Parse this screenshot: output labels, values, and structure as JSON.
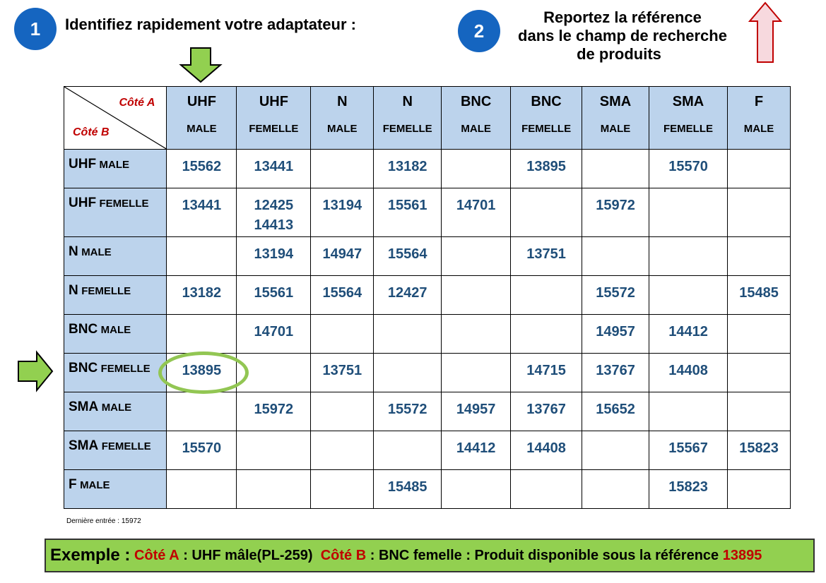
{
  "steps": [
    {
      "number": "1",
      "text": "Identifiez rapidement votre adaptateur :"
    },
    {
      "number": "2",
      "lines": [
        "Reportez la référence",
        "dans le champ de recherche",
        "de produits"
      ]
    }
  ],
  "colors": {
    "step_circle": "#1565c0",
    "header_fill": "#bcd3ec",
    "value_text": "#1f4e79",
    "accent_red": "#c00000",
    "arrow_green": "#92d050",
    "arrow_red_outline": "#c00000"
  },
  "icons": {
    "down_arrow": "green-down-arrow-icon",
    "right_arrow": "green-right-arrow-icon",
    "up_arrow": "red-up-arrow-icon"
  },
  "table": {
    "corner": {
      "side_a": "Côté A",
      "side_b": "Côté B"
    },
    "columns": [
      {
        "top": "UHF",
        "sub": "MALE"
      },
      {
        "top": "UHF",
        "sub": "FEMELLE"
      },
      {
        "top": "N",
        "sub": "MALE"
      },
      {
        "top": "N",
        "sub": "FEMELLE"
      },
      {
        "top": "BNC",
        "sub": "MALE"
      },
      {
        "top": "BNC",
        "sub": "FEMELLE"
      },
      {
        "top": "SMA",
        "sub": "MALE"
      },
      {
        "top": "SMA",
        "sub": "FEMELLE"
      },
      {
        "top": "F",
        "sub": "MALE"
      }
    ],
    "rows": [
      {
        "main": "UHF",
        "sub": "MALE",
        "cells": [
          [
            "15562"
          ],
          [
            "13441"
          ],
          [],
          [
            "13182"
          ],
          [],
          [
            "13895"
          ],
          [],
          [
            "15570"
          ],
          []
        ]
      },
      {
        "main": "UHF",
        "sub": "FEMELLE",
        "cells": [
          [
            "13441"
          ],
          [
            "12425",
            "14413"
          ],
          [
            "13194"
          ],
          [
            "15561"
          ],
          [
            "14701"
          ],
          [],
          [
            "15972"
          ],
          [],
          []
        ]
      },
      {
        "main": "N",
        "sub": "MALE",
        "cells": [
          [],
          [
            "13194"
          ],
          [
            "14947"
          ],
          [
            "15564"
          ],
          [],
          [
            "13751"
          ],
          [],
          [],
          []
        ]
      },
      {
        "main": "N",
        "sub": "FEMELLE",
        "cells": [
          [
            "13182"
          ],
          [
            "15561"
          ],
          [
            "15564"
          ],
          [
            "12427"
          ],
          [],
          [],
          [
            "15572"
          ],
          [],
          [
            "15485"
          ]
        ]
      },
      {
        "main": "BNC",
        "sub": "MALE",
        "cells": [
          [],
          [
            "14701"
          ],
          [],
          [],
          [],
          [],
          [
            "14957"
          ],
          [
            "14412"
          ],
          []
        ]
      },
      {
        "main": "BNC",
        "sub": "FEMELLE",
        "cells": [
          [
            "13895"
          ],
          [],
          [
            "13751"
          ],
          [],
          [],
          [
            "14715"
          ],
          [
            "13767"
          ],
          [
            "14408"
          ],
          []
        ]
      },
      {
        "main": "SMA",
        "sub": "MALE",
        "cells": [
          [],
          [
            "15972"
          ],
          [],
          [
            "15572"
          ],
          [
            "14957"
          ],
          [
            "13767"
          ],
          [
            "15652"
          ],
          [],
          []
        ]
      },
      {
        "main": "SMA",
        "sub": "FEMELLE",
        "cells": [
          [
            "15570"
          ],
          [],
          [],
          [],
          [
            "14412"
          ],
          [
            "14408"
          ],
          [],
          [
            "15567"
          ],
          [
            "15823"
          ]
        ]
      },
      {
        "main": "F",
        "sub": "MALE",
        "cells": [
          [],
          [],
          [],
          [
            "15485"
          ],
          [],
          [],
          [],
          [
            "15823"
          ],
          []
        ]
      }
    ]
  },
  "last_entry": "Dernière entrée : 15972",
  "example": {
    "label": "Exemple :",
    "side_a_label": "Côté A",
    "side_a_value": ": UHF mâle(PL-259)",
    "side_b_label": "Côté B",
    "side_b_value": ": BNC femelle : Produit disponible sous la référence",
    "reference": "13895"
  }
}
